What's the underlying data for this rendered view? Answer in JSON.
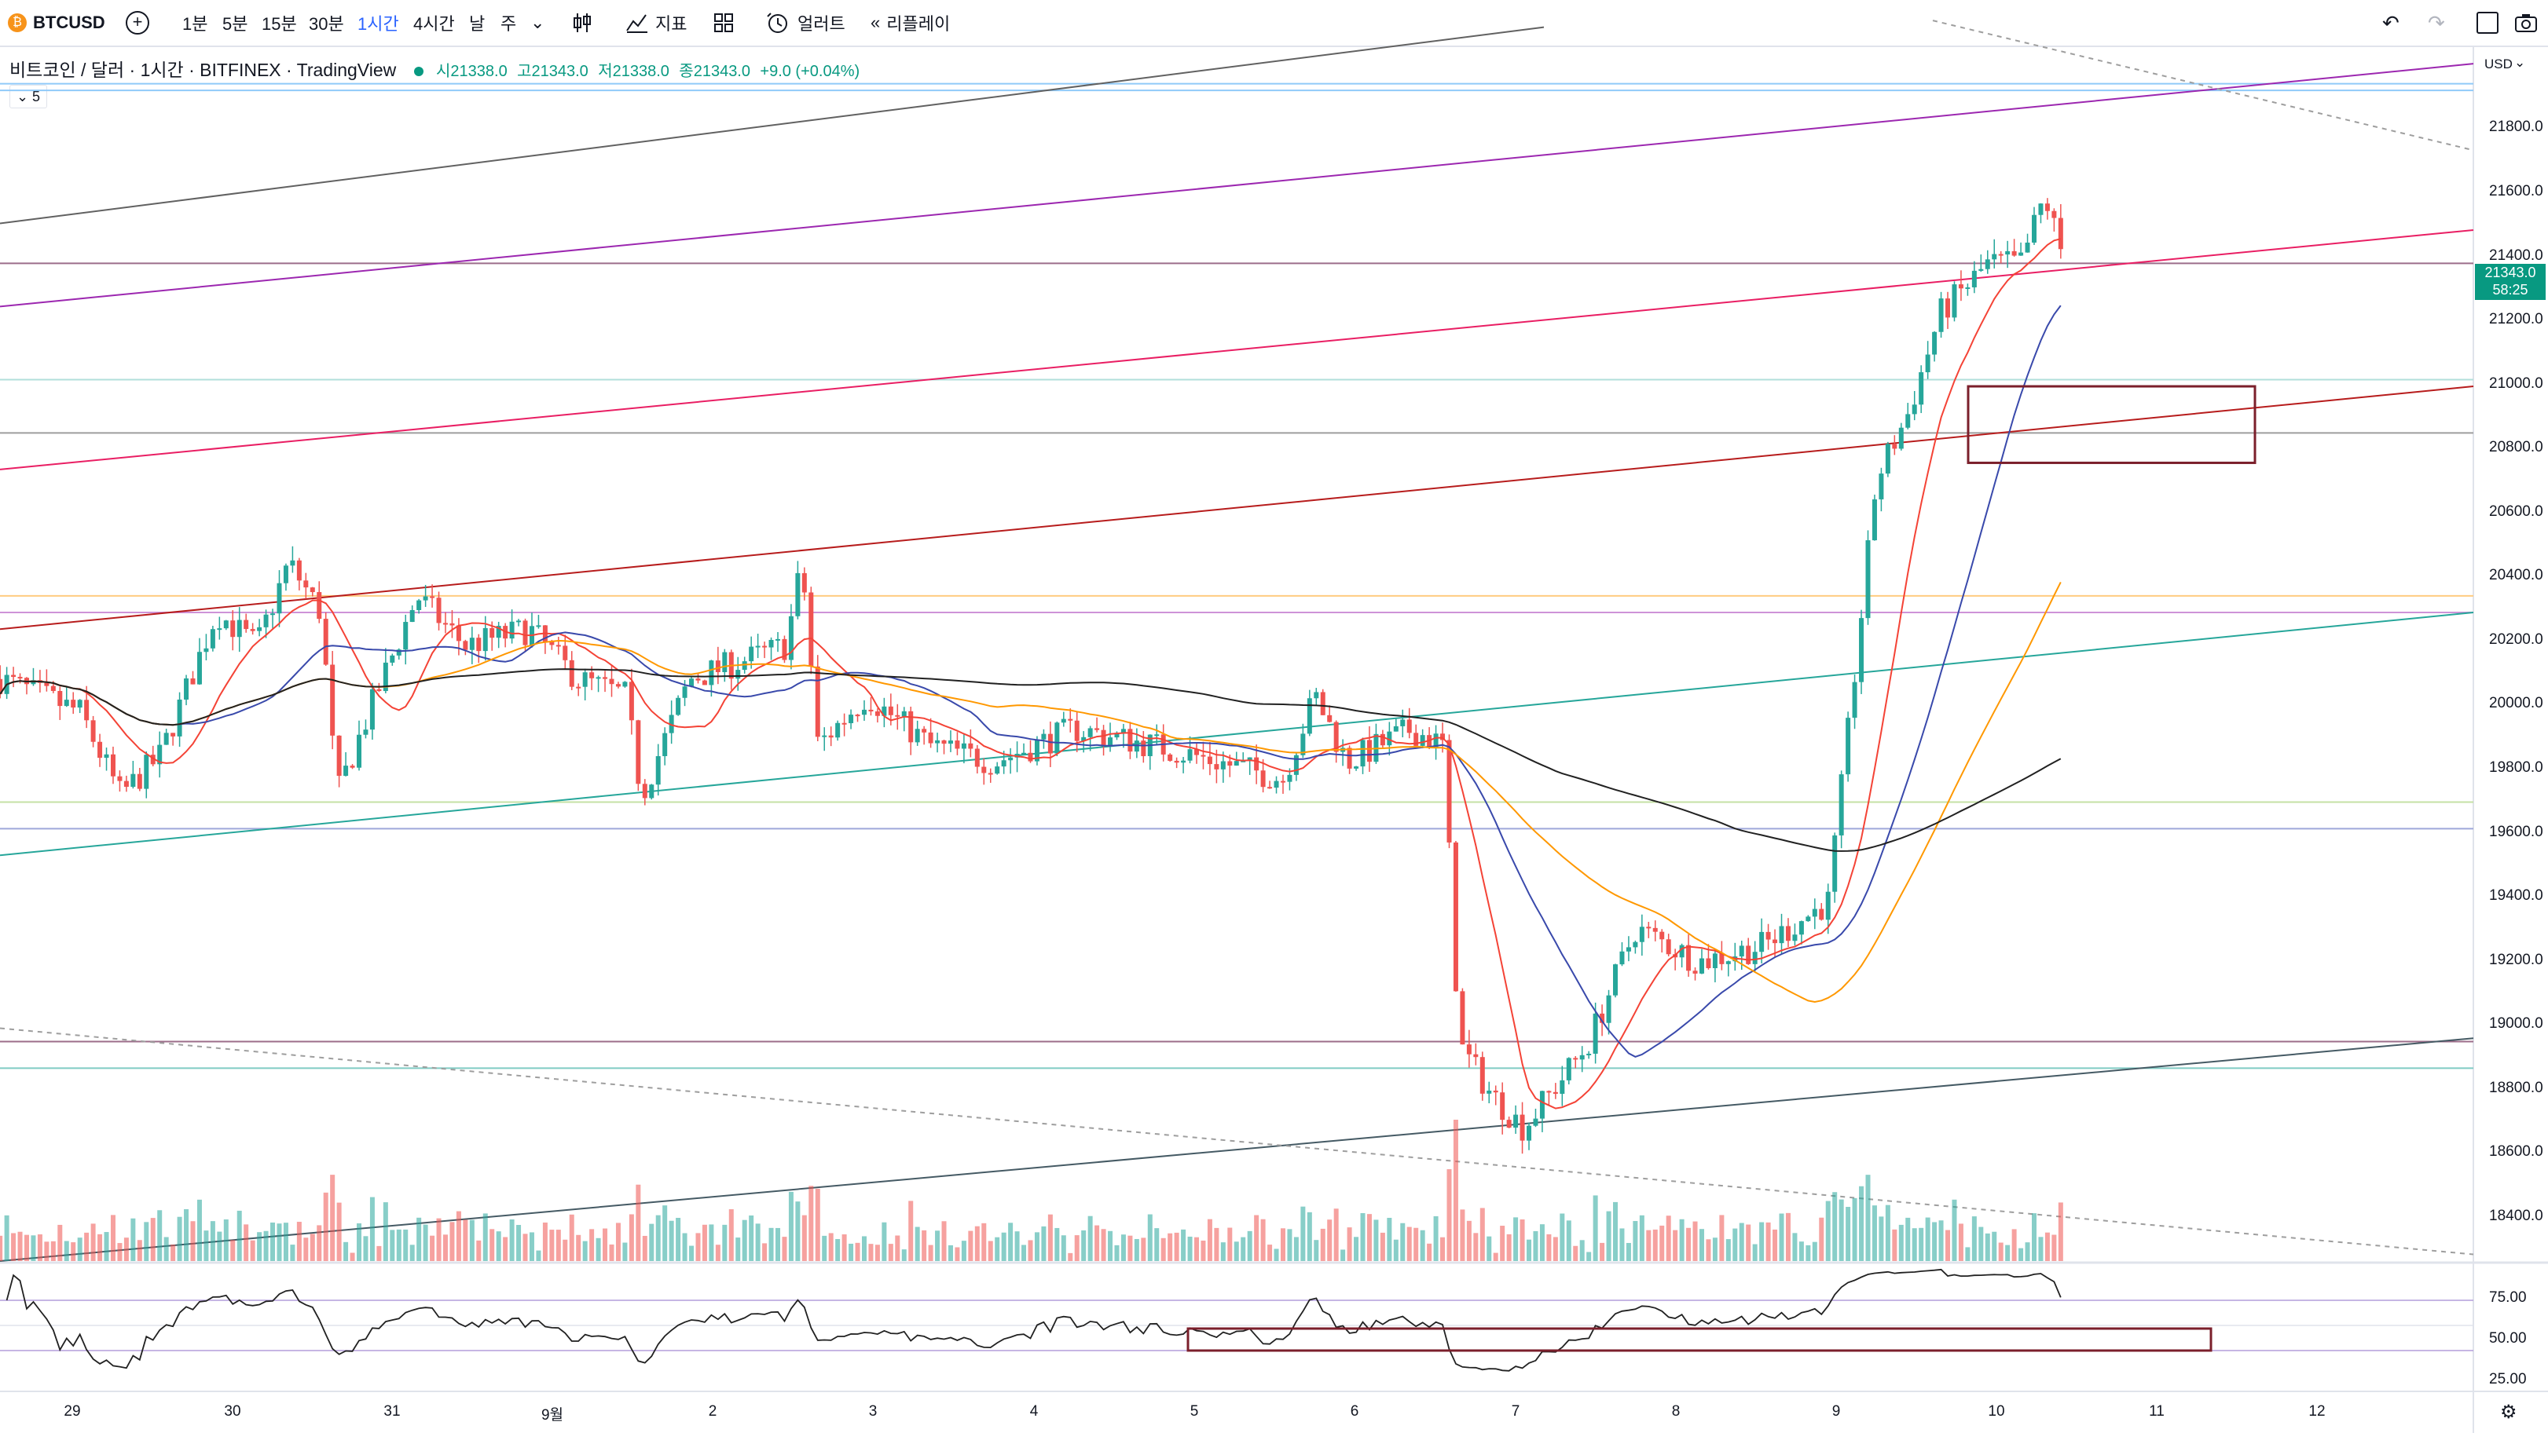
{
  "toolbar": {
    "symbol": "BTCUSD",
    "intervals": [
      "1분",
      "5분",
      "15분",
      "30분",
      "1시간",
      "4시간",
      "날",
      "주"
    ],
    "active_interval": "1시간",
    "indicators_label": "지표",
    "alert_label": "얼러트",
    "replay_label": "리플레이"
  },
  "legend": {
    "title": "비트코인 / 달러 · 1시간 · BITFINEX · TradingView",
    "open": "시21338.0",
    "high": "고21343.0",
    "low": "저21338.0",
    "close": "종21343.0",
    "change": "+9.0 (+0.04%)",
    "sub_count": "5"
  },
  "price_axis": {
    "currency": "USD",
    "labels": [
      "21800.0",
      "21600.0",
      "21400.0",
      "21200.0",
      "21000.0",
      "20800.0",
      "20600.0",
      "20400.0",
      "20200.0",
      "20000.0",
      "19800.0",
      "19600.0",
      "19400.0",
      "19200.0",
      "19000.0",
      "18800.0",
      "18600.0",
      "18400.0"
    ],
    "current_price": "21343.0",
    "countdown": "58:25"
  },
  "rsi_axis": {
    "labels": [
      "75.00",
      "50.00",
      "25.00"
    ]
  },
  "time_axis": {
    "labels": [
      "29",
      "30",
      "31",
      "9월",
      "2",
      "3",
      "4",
      "5",
      "6",
      "7",
      "8",
      "9",
      "10",
      "11",
      "12"
    ]
  },
  "colors": {
    "up": "#26a69a",
    "down": "#ef5350",
    "accent": "#2962ff"
  },
  "icons": [
    "plus-icon",
    "candle-type-icon",
    "indicators-icon",
    "templates-icon",
    "alert-icon",
    "replay-icon",
    "undo-icon",
    "redo-icon",
    "fullscreen-icon",
    "camera-icon",
    "settings-icon"
  ],
  "chart_data": {
    "type": "candlestick",
    "x_labels": [
      "29",
      "30",
      "31",
      "9월",
      "2",
      "3",
      "4",
      "5",
      "6",
      "7",
      "8",
      "9",
      "10",
      "11",
      "12"
    ],
    "ylim": [
      18300,
      21950
    ],
    "close_path": [
      {
        "x": 0,
        "v": 20050
      },
      {
        "x": 0.5,
        "v": 19950
      },
      {
        "x": 0.75,
        "v": 19700
      },
      {
        "x": 1,
        "v": 19820
      },
      {
        "x": 1.35,
        "v": 20250
      },
      {
        "x": 1.6,
        "v": 20150
      },
      {
        "x": 1.8,
        "v": 20400
      },
      {
        "x": 2.0,
        "v": 20250
      },
      {
        "x": 2.1,
        "v": 19700
      },
      {
        "x": 2.3,
        "v": 19950
      },
      {
        "x": 2.6,
        "v": 20300
      },
      {
        "x": 2.9,
        "v": 20150
      },
      {
        "x": 3.3,
        "v": 20200
      },
      {
        "x": 3.6,
        "v": 20050
      },
      {
        "x": 3.9,
        "v": 20000
      },
      {
        "x": 4.0,
        "v": 19700
      },
      {
        "x": 4.3,
        "v": 20050
      },
      {
        "x": 4.6,
        "v": 20100
      },
      {
        "x": 4.9,
        "v": 20150
      },
      {
        "x": 5.0,
        "v": 20400
      },
      {
        "x": 5.1,
        "v": 19850
      },
      {
        "x": 5.4,
        "v": 20000
      },
      {
        "x": 5.8,
        "v": 19850
      },
      {
        "x": 6.2,
        "v": 19800
      },
      {
        "x": 6.7,
        "v": 19900
      },
      {
        "x": 7.2,
        "v": 19850
      },
      {
        "x": 7.6,
        "v": 19800
      },
      {
        "x": 8.0,
        "v": 19750
      },
      {
        "x": 8.2,
        "v": 20000
      },
      {
        "x": 8.4,
        "v": 19800
      },
      {
        "x": 8.8,
        "v": 19900
      },
      {
        "x": 9.0,
        "v": 19850
      },
      {
        "x": 9.1,
        "v": 18950
      },
      {
        "x": 9.3,
        "v": 18800
      },
      {
        "x": 9.5,
        "v": 18700
      },
      {
        "x": 9.9,
        "v": 18950
      },
      {
        "x": 10.2,
        "v": 19300
      },
      {
        "x": 10.6,
        "v": 19200
      },
      {
        "x": 11.0,
        "v": 19250
      },
      {
        "x": 11.4,
        "v": 19380
      },
      {
        "x": 11.55,
        "v": 20000
      },
      {
        "x": 11.7,
        "v": 20650
      },
      {
        "x": 11.9,
        "v": 20850
      },
      {
        "x": 12.1,
        "v": 21150
      },
      {
        "x": 12.4,
        "v": 21300
      },
      {
        "x": 12.6,
        "v": 21300
      },
      {
        "x": 12.75,
        "v": 21500
      },
      {
        "x": 12.85,
        "v": 21343
      }
    ],
    "rsi_levels": [
      70,
      50,
      30
    ]
  }
}
